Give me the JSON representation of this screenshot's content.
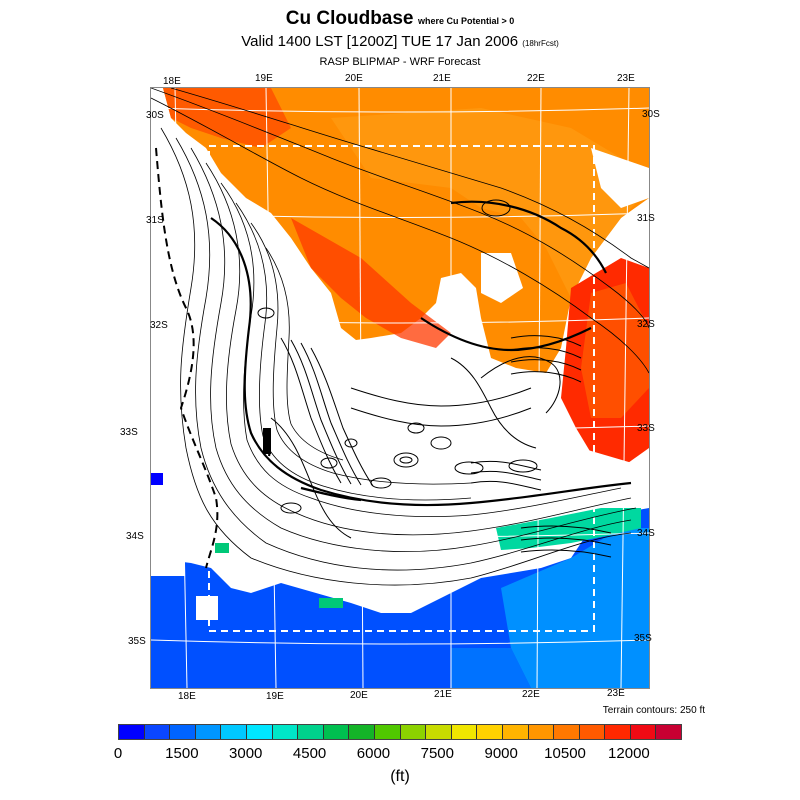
{
  "title": {
    "main": "Cu Cloudbase",
    "qualifier": "where Cu Potential > 0"
  },
  "subtitle": {
    "valid": "Valid 1400 LST [1200Z] TUE 17 Jan 2006",
    "fcst": "(18hrFcst)"
  },
  "model": "RASP BLIPMAP - WRF Forecast",
  "top_lon_labels": [
    "18E",
    "19E",
    "20E",
    "21E",
    "22E",
    "23E"
  ],
  "bottom_lon_labels": [
    "18E",
    "19E",
    "20E",
    "21E",
    "22E",
    "23E"
  ],
  "lat_labels": [
    {
      "text": "30S",
      "side": "both"
    },
    {
      "text": "31S",
      "side": "right"
    },
    {
      "text": "32S",
      "side": "both"
    },
    {
      "text": "33S",
      "side": "both"
    },
    {
      "text": "34S",
      "side": "both"
    },
    {
      "text": "35S",
      "side": "both"
    }
  ],
  "terrain_note": "Terrain contours: 250 ft",
  "colorbar": {
    "colors": [
      "#0000ff",
      "#0a46ff",
      "#0064ff",
      "#0096ff",
      "#00c8ff",
      "#00e6ff",
      "#00e6c8",
      "#00d28c",
      "#00c050",
      "#14b428",
      "#50c800",
      "#8cd200",
      "#c8dc00",
      "#f0e600",
      "#ffd200",
      "#ffb400",
      "#ff9600",
      "#ff7800",
      "#ff5a00",
      "#ff2800",
      "#f00a14",
      "#c80032"
    ],
    "ticks": [
      "0",
      "1500",
      "3000",
      "4500",
      "6000",
      "7500",
      "9000",
      "10500",
      "12000"
    ],
    "unit": "(ft)"
  },
  "field_key": {
    "orange": "#ff8c00",
    "orangeDeep": "#ff6e00",
    "red": "#ff2a00",
    "blue": "#0050ff",
    "blueLight": "#0090ff",
    "teal": "#00d8a0"
  }
}
